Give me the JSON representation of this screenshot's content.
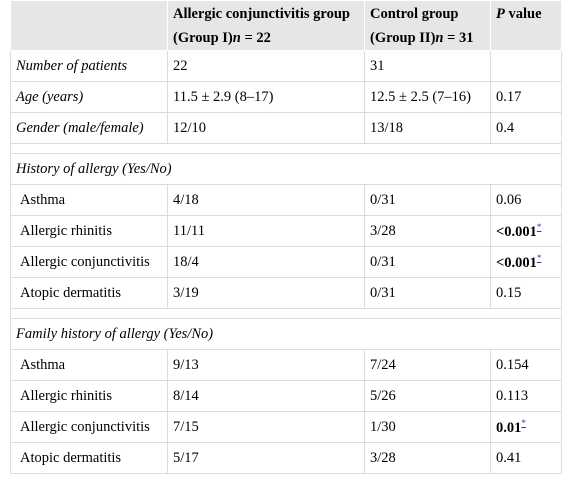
{
  "header": {
    "col1": "",
    "col2_line1": "Allergic conjunctivitis group",
    "col2_line2_a": "(Group I)",
    "col2_line2_b": "n",
    "col2_line2_c": " = 22",
    "col3_line1": "Control group",
    "col3_line2_a": "(Group II)",
    "col3_line2_b": "n",
    "col3_line2_c": " = 31",
    "col4_a": "P",
    "col4_b": " value"
  },
  "rows": [
    {
      "label": "Number of patients",
      "g1": "22",
      "g2": "31",
      "p": ""
    },
    {
      "label": "Age (years)",
      "g1": "11.5 ± 2.9 (8–17)",
      "g2": "12.5 ± 2.5 (7–16)",
      "p": "0.17"
    },
    {
      "label": "Gender (male/female)",
      "g1": "12/10",
      "g2": "13/18",
      "p": "0.4"
    }
  ],
  "history": {
    "title": "History of allergy (Yes/No)",
    "rows": [
      {
        "label": "Asthma",
        "g1": "4/18",
        "g2": "0/31",
        "p": "0.06"
      },
      {
        "label": "Allergic rhinitis",
        "g1": "11/11",
        "g2": "3/28",
        "p": "<0.001",
        "star": "*"
      },
      {
        "label": "Allergic conjunctivitis",
        "g1": "18/4",
        "g2": "0/31",
        "p": "<0.001",
        "star": "*"
      },
      {
        "label": "Atopic dermatitis",
        "g1": "3/19",
        "g2": "0/31",
        "p": "0.15"
      }
    ]
  },
  "family": {
    "title": "Family history of allergy (Yes/No)",
    "rows": [
      {
        "label": "Asthma",
        "g1": "9/13",
        "g2": "7/24",
        "p": "0.154"
      },
      {
        "label": "Allergic rhinitis",
        "g1": "8/14",
        "g2": "5/26",
        "p": "0.113"
      },
      {
        "label": "Allergic conjunctivitis",
        "g1": "7/15",
        "g2": "1/30",
        "p": "0.01",
        "star": "*"
      },
      {
        "label": "Atopic dermatitis",
        "g1": "5/17",
        "g2": "3/28",
        "p": "0.41"
      }
    ]
  }
}
